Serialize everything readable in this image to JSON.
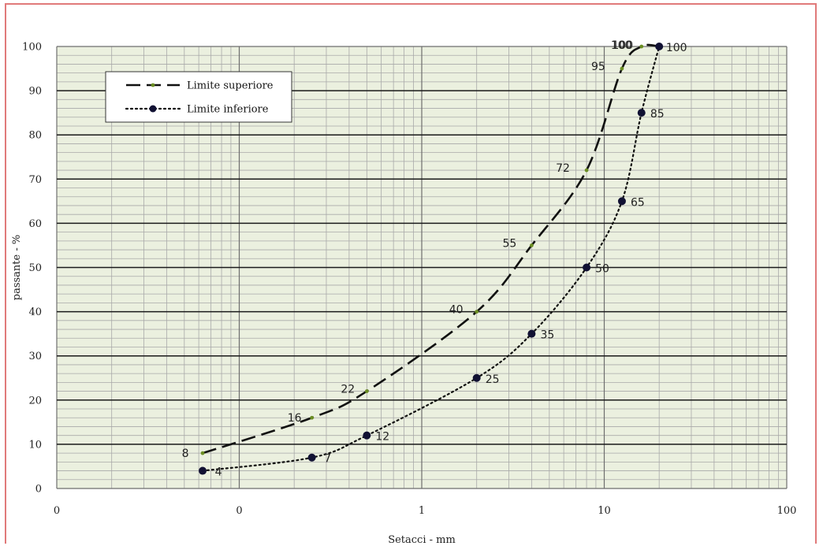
{
  "chart_data": {
    "type": "line",
    "title": "",
    "xlabel": "Setacci - mm",
    "ylabel": "passante - %",
    "x_scale": "log",
    "xlim": [
      0.01,
      100
    ],
    "ylim": [
      0,
      100
    ],
    "x_tick_labels": [
      "0",
      "0",
      "1",
      "10",
      "100"
    ],
    "y_ticks": [
      0,
      10,
      20,
      30,
      40,
      50,
      60,
      70,
      80,
      90,
      100
    ],
    "grid": true,
    "legend_position": "top-left",
    "plot_background": "#ebf0df",
    "series": [
      {
        "name": "Limite superiore",
        "style": "dashed",
        "color": "#111111",
        "marker_color": "#6b8e23",
        "x": [
          0.063,
          0.25,
          0.5,
          2,
          4,
          8,
          12.5,
          16,
          20
        ],
        "y": [
          8,
          16,
          22,
          40,
          55,
          72,
          95,
          100,
          100
        ],
        "labels": [
          "8",
          "16",
          "22",
          "40",
          "55",
          "72",
          "95",
          "100",
          "100"
        ]
      },
      {
        "name": "Limite inferiore",
        "style": "dotted",
        "color": "#111111",
        "marker_color": "#111133",
        "x": [
          0.063,
          0.25,
          0.5,
          2,
          4,
          8,
          12.5,
          16,
          20
        ],
        "y": [
          4,
          7,
          12,
          25,
          35,
          50,
          65,
          85,
          100
        ],
        "labels": [
          "4",
          "7",
          "12",
          "25",
          "35",
          "50",
          "65",
          "85",
          "100"
        ]
      }
    ]
  }
}
